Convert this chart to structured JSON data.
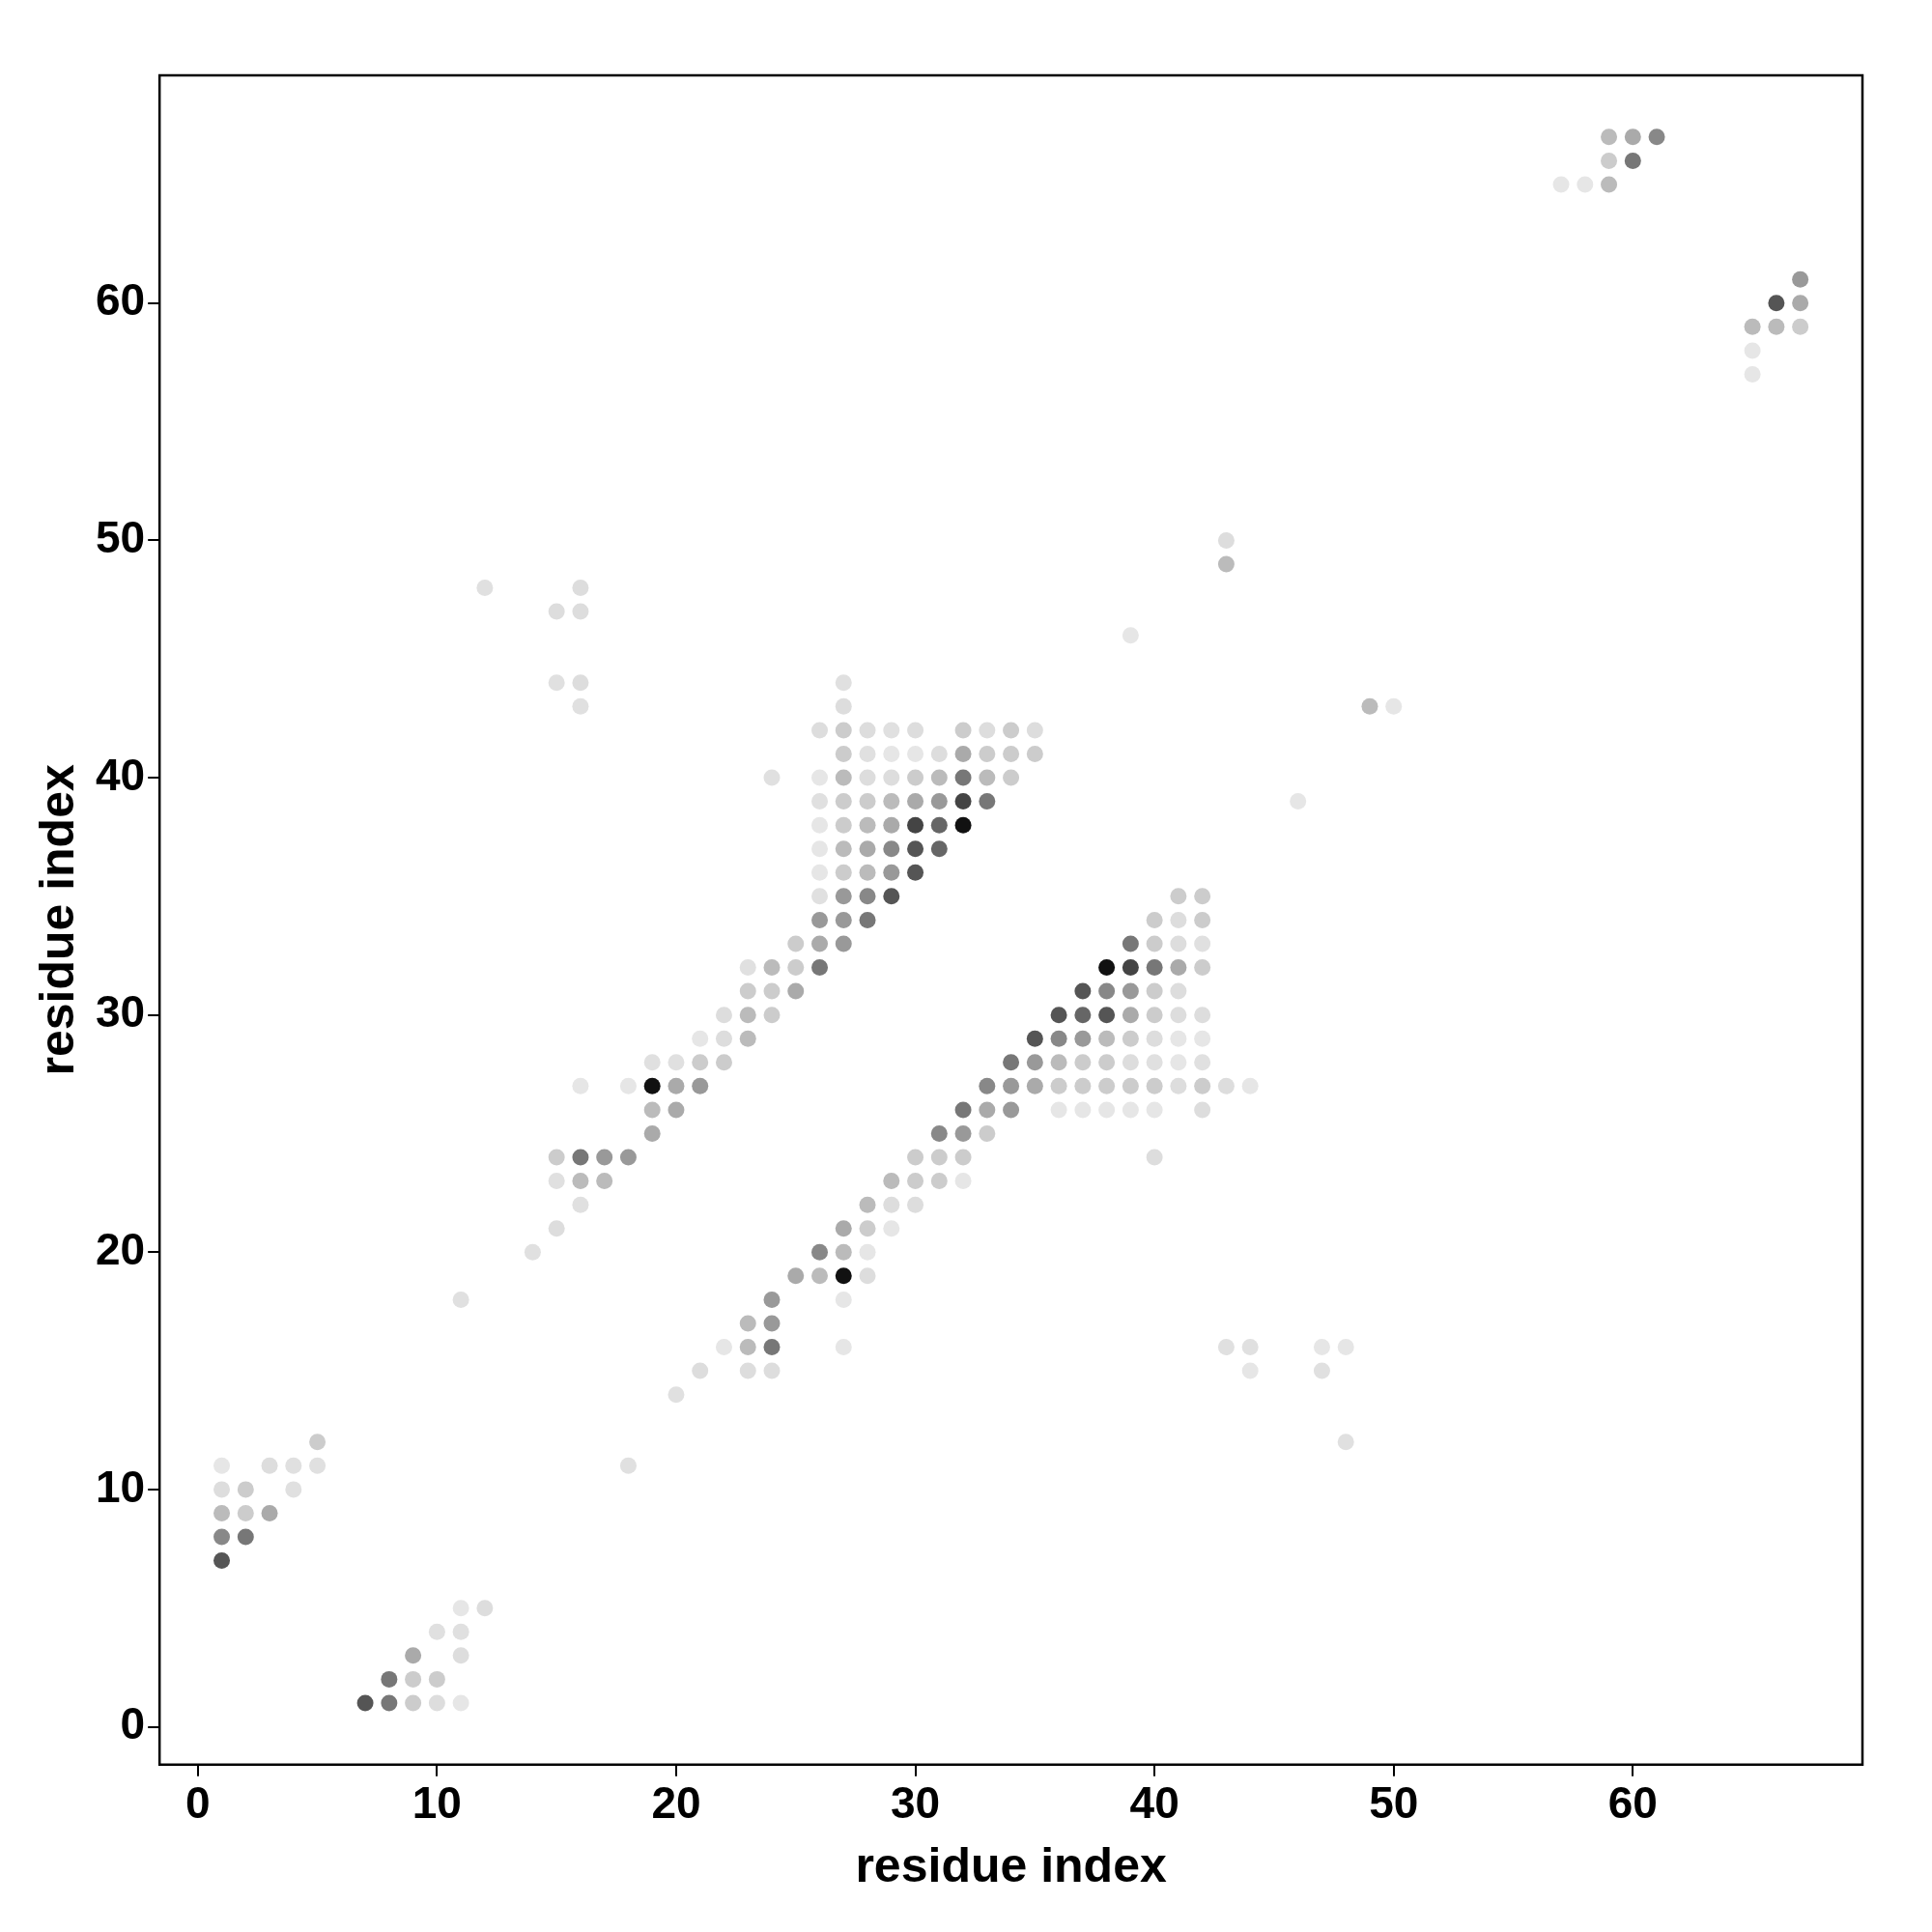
{
  "chart_data": {
    "type": "scatter",
    "xlabel": "residue index",
    "ylabel": "residue index",
    "xlim": [
      -1.6,
      69.6
    ],
    "ylim": [
      -1.6,
      69.6
    ],
    "xticks": [
      0,
      10,
      20,
      30,
      40,
      50,
      60
    ],
    "yticks": [
      0,
      10,
      20,
      30,
      40,
      50,
      60
    ],
    "grid": false,
    "legend": false,
    "marker": "circle",
    "series": [
      {
        "x": [
          7,
          8,
          9,
          10,
          11,
          8,
          9,
          10,
          9,
          11,
          10,
          11,
          11,
          12,
          1,
          1,
          2,
          1,
          2,
          3,
          1,
          2,
          4,
          1,
          3,
          4,
          5,
          18,
          5,
          48,
          20,
          21,
          23,
          24,
          44,
          47,
          22,
          23,
          24,
          27,
          43,
          44,
          47,
          48,
          23,
          24,
          11,
          24,
          27,
          25,
          26,
          27,
          28,
          14,
          26,
          27,
          28,
          15,
          27,
          28,
          29,
          16,
          28,
          29,
          30,
          15,
          16,
          17,
          29,
          30,
          31,
          32,
          15,
          16,
          17,
          18,
          30,
          31,
          32,
          40,
          19,
          31,
          32,
          33,
          19,
          20,
          32,
          33,
          34,
          36,
          37,
          38,
          39,
          40,
          42,
          16,
          18,
          19,
          20,
          21,
          33,
          34,
          35,
          36,
          37,
          38,
          39,
          40,
          41,
          42,
          43,
          44,
          19,
          20,
          21,
          22,
          34,
          35,
          36,
          37,
          38,
          39,
          40,
          41,
          42,
          21,
          22,
          23,
          35,
          36,
          37,
          38,
          39,
          40,
          41,
          42,
          22,
          23,
          24,
          36,
          37,
          38,
          39,
          40,
          41,
          42,
          23,
          24,
          25,
          37,
          38,
          39,
          40,
          41,
          23,
          24,
          25,
          26,
          38,
          39,
          40,
          41,
          42,
          25,
          26,
          27,
          39,
          40,
          41,
          42,
          26,
          27,
          28,
          40,
          41,
          42,
          26,
          27,
          28,
          29,
          41,
          42,
          26,
          27,
          28,
          29,
          30,
          26,
          27,
          28,
          29,
          30,
          31,
          26,
          27,
          28,
          29,
          30,
          31,
          32,
          26,
          27,
          28,
          29,
          30,
          31,
          32,
          33,
          46,
          24,
          26,
          27,
          28,
          29,
          30,
          31,
          32,
          33,
          34,
          27,
          28,
          29,
          30,
          31,
          32,
          33,
          34,
          35,
          26,
          27,
          28,
          29,
          30,
          32,
          33,
          34,
          35,
          16,
          27,
          49,
          50,
          15,
          16,
          27,
          39,
          15,
          16,
          12,
          16,
          43,
          43,
          65,
          65,
          65,
          66,
          67,
          66,
          67,
          67,
          57,
          58,
          59,
          59,
          60,
          59,
          60,
          61
        ],
        "values": [
          1,
          1,
          1,
          1,
          1,
          2,
          2,
          2,
          3,
          3,
          4,
          4,
          5,
          5,
          7,
          8,
          8,
          9,
          9,
          9,
          10,
          10,
          10,
          11,
          11,
          11,
          11,
          11,
          12,
          12,
          14,
          15,
          15,
          15,
          15,
          15,
          16,
          16,
          16,
          16,
          16,
          16,
          16,
          16,
          17,
          17,
          18,
          18,
          18,
          19,
          19,
          19,
          19,
          20,
          20,
          20,
          20,
          21,
          21,
          21,
          21,
          22,
          22,
          22,
          22,
          23,
          23,
          23,
          23,
          23,
          23,
          23,
          24,
          24,
          24,
          24,
          24,
          24,
          24,
          24,
          25,
          25,
          25,
          25,
          26,
          26,
          26,
          26,
          26,
          26,
          26,
          26,
          26,
          26,
          26,
          27,
          27,
          27,
          27,
          27,
          27,
          27,
          27,
          27,
          27,
          27,
          27,
          27,
          27,
          27,
          27,
          27,
          28,
          28,
          28,
          28,
          28,
          28,
          28,
          28,
          28,
          28,
          28,
          28,
          28,
          29,
          29,
          29,
          29,
          29,
          29,
          29,
          29,
          29,
          29,
          29,
          30,
          30,
          30,
          30,
          30,
          30,
          30,
          30,
          30,
          30,
          31,
          31,
          31,
          31,
          31,
          31,
          31,
          31,
          32,
          32,
          32,
          32,
          32,
          32,
          32,
          32,
          32,
          33,
          33,
          33,
          33,
          33,
          33,
          33,
          34,
          34,
          34,
          34,
          34,
          34,
          35,
          35,
          35,
          35,
          35,
          35,
          36,
          36,
          36,
          36,
          36,
          37,
          37,
          37,
          37,
          37,
          37,
          38,
          38,
          38,
          38,
          38,
          38,
          38,
          39,
          39,
          39,
          39,
          39,
          39,
          39,
          39,
          39,
          40,
          40,
          40,
          40,
          40,
          40,
          40,
          40,
          40,
          40,
          41,
          41,
          41,
          41,
          41,
          41,
          41,
          41,
          41,
          42,
          42,
          42,
          42,
          42,
          42,
          42,
          42,
          42,
          43,
          43,
          43,
          43,
          44,
          44,
          44,
          46,
          47,
          47,
          48,
          48,
          49,
          50,
          57,
          58,
          59,
          59,
          59,
          60,
          60,
          61,
          65,
          65,
          65,
          66,
          66,
          67,
          67,
          67
        ],
        "colors": [
          "#555555",
          "#777777",
          "#cccccc",
          "#dddddd",
          "#e6e6e6",
          "#777777",
          "#cccccc",
          "#cccccc",
          "#aaaaaa",
          "#dddddd",
          "#e0e0e0",
          "#e0e0e0",
          "#e6e6e6",
          "#dddddd",
          "#555555",
          "#888888",
          "#777777",
          "#bbbbbb",
          "#cccccc",
          "#aaaaaa",
          "#dddddd",
          "#cccccc",
          "#e0e0e0",
          "#e6e6e6",
          "#dddddd",
          "#e0e0e0",
          "#e0e0e0",
          "#e0e0e0",
          "#cccccc",
          "#e0e0e0",
          "#e0e0e0",
          "#dddddd",
          "#dddddd",
          "#dddddd",
          "#e6e6e6",
          "#e0e0e0",
          "#e6e6e6",
          "#bbbbbb",
          "#777777",
          "#e6e6e6",
          "#e0e0e0",
          "#e0e0e0",
          "#e6e6e6",
          "#e6e6e6",
          "#bbbbbb",
          "#999999",
          "#e0e0e0",
          "#999999",
          "#e6e6e6",
          "#aaaaaa",
          "#bbbbbb",
          "#111111",
          "#dddddd",
          "#e0e0e0",
          "#888888",
          "#bbbbbb",
          "#e6e6e6",
          "#dddddd",
          "#aaaaaa",
          "#cccccc",
          "#e6e6e6",
          "#e0e0e0",
          "#bbbbbb",
          "#dddddd",
          "#dddddd",
          "#e0e0e0",
          "#bbbbbb",
          "#bbbbbb",
          "#bbbbbb",
          "#cccccc",
          "#cccccc",
          "#e6e6e6",
          "#cccccc",
          "#777777",
          "#999999",
          "#999999",
          "#cccccc",
          "#cccccc",
          "#cccccc",
          "#dddddd",
          "#aaaaaa",
          "#888888",
          "#999999",
          "#cccccc",
          "#bbbbbb",
          "#aaaaaa",
          "#777777",
          "#aaaaaa",
          "#999999",
          "#e6e6e6",
          "#e6e6e6",
          "#e6e6e6",
          "#e6e6e6",
          "#e6e6e6",
          "#dddddd",
          "#e6e6e6",
          "#e6e6e6",
          "#111111",
          "#aaaaaa",
          "#999999",
          "#888888",
          "#999999",
          "#aaaaaa",
          "#cccccc",
          "#cccccc",
          "#cccccc",
          "#cccccc",
          "#cccccc",
          "#dddddd",
          "#cccccc",
          "#dddddd",
          "#e6e6e6",
          "#e0e0e0",
          "#e0e0e0",
          "#cccccc",
          "#cccccc",
          "#777777",
          "#999999",
          "#bbbbbb",
          "#cccccc",
          "#cccccc",
          "#dddddd",
          "#e0e0e0",
          "#e6e6e6",
          "#e0e0e0",
          "#e6e6e6",
          "#dddddd",
          "#bbbbbb",
          "#555555",
          "#888888",
          "#999999",
          "#bbbbbb",
          "#cccccc",
          "#dddddd",
          "#e6e6e6",
          "#e6e6e6",
          "#dddddd",
          "#bbbbbb",
          "#cccccc",
          "#555555",
          "#666666",
          "#555555",
          "#aaaaaa",
          "#cccccc",
          "#dddddd",
          "#dddddd",
          "#cccccc",
          "#cccccc",
          "#aaaaaa",
          "#555555",
          "#888888",
          "#999999",
          "#cccccc",
          "#dddddd",
          "#e0e0e0",
          "#bbbbbb",
          "#cccccc",
          "#777777",
          "#111111",
          "#444444",
          "#777777",
          "#aaaaaa",
          "#cccccc",
          "#cccccc",
          "#aaaaaa",
          "#999999",
          "#777777",
          "#cccccc",
          "#dddddd",
          "#e0e0e0",
          "#999999",
          "#999999",
          "#777777",
          "#cccccc",
          "#dddddd",
          "#cccccc",
          "#e0e0e0",
          "#999999",
          "#888888",
          "#555555",
          "#cccccc",
          "#cccccc",
          "#e6e6e6",
          "#cccccc",
          "#bbbbbb",
          "#999999",
          "#555555",
          "#e6e6e6",
          "#bbbbbb",
          "#aaaaaa",
          "#888888",
          "#555555",
          "#666666",
          "#e6e6e6",
          "#cccccc",
          "#bbbbbb",
          "#aaaaaa",
          "#444444",
          "#666666",
          "#111111",
          "#e0e0e0",
          "#cccccc",
          "#cccccc",
          "#bbbbbb",
          "#aaaaaa",
          "#999999",
          "#444444",
          "#777777",
          "#e6e6e6",
          "#e0e0e0",
          "#e6e6e6",
          "#bbbbbb",
          "#dddddd",
          "#dddddd",
          "#cccccc",
          "#bbbbbb",
          "#777777",
          "#bbbbbb",
          "#cccccc",
          "#cccccc",
          "#e0e0e0",
          "#e6e6e6",
          "#e6e6e6",
          "#dddddd",
          "#aaaaaa",
          "#cccccc",
          "#cccccc",
          "#cccccc",
          "#dddddd",
          "#cccccc",
          "#dddddd",
          "#e0e0e0",
          "#dddddd",
          "#cccccc",
          "#dddddd",
          "#cccccc",
          "#dddddd",
          "#e0e0e0",
          "#dddddd",
          "#bbbbbb",
          "#e6e6e6",
          "#e0e0e0",
          "#dddddd",
          "#e0e0e0",
          "#e6e6e6",
          "#dddddd",
          "#dddddd",
          "#e0e0e0",
          "#dddddd",
          "#bbbbbb",
          "#dddddd",
          "#e6e6e6",
          "#e6e6e6",
          "#bbbbbb",
          "#bbbbbb",
          "#cccccc",
          "#555555",
          "#aaaaaa",
          "#999999",
          "#e6e6e6",
          "#e6e6e6",
          "#bbbbbb",
          "#cccccc",
          "#777777",
          "#bbbbbb",
          "#aaaaaa",
          "#888888"
        ]
      }
    ]
  }
}
